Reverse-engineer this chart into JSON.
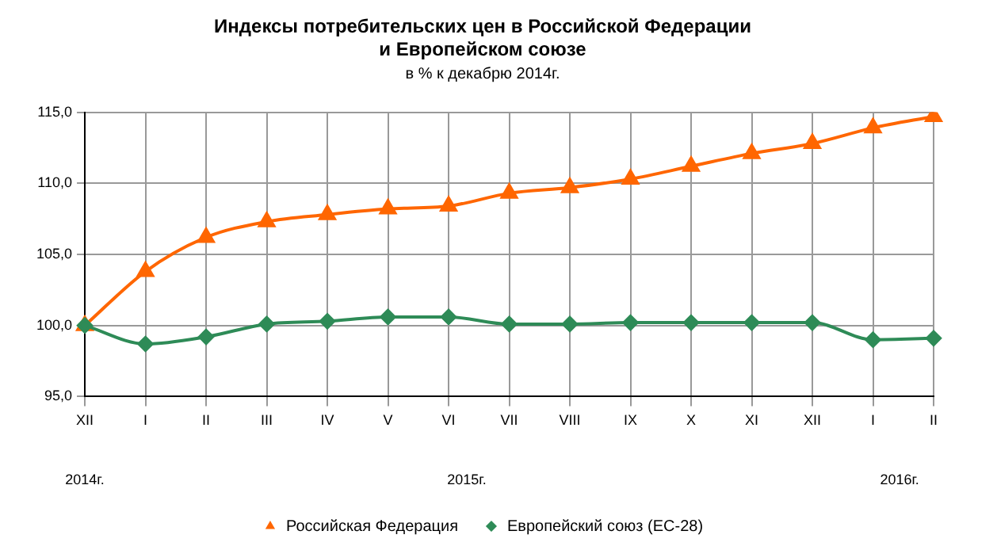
{
  "chart_data": {
    "type": "line",
    "title": "Индексы потребительских цен в Российской Федерации\nи Европейском союзе",
    "subtitle": "в % к декабрю 2014г.",
    "categories": [
      "XII",
      "I",
      "II",
      "III",
      "IV",
      "V",
      "VI",
      "VII",
      "VIII",
      "IX",
      "X",
      "XI",
      "XII",
      "I",
      "II"
    ],
    "series": [
      {
        "name": "Российская Федерация",
        "color": "#ff6600",
        "marker": "triangle",
        "values": [
          100,
          103.8,
          106.2,
          107.3,
          107.8,
          108.2,
          108.4,
          109.3,
          109.7,
          110.3,
          111.2,
          112.1,
          112.8,
          113.9,
          114.7
        ]
      },
      {
        "name": "Европейский союз (ЕС-28)",
        "color": "#2e8b57",
        "marker": "diamond",
        "values": [
          100,
          98.7,
          99.2,
          100.1,
          100.3,
          100.6,
          100.6,
          100.1,
          100.1,
          100.2,
          100.2,
          100.2,
          100.2,
          99.0,
          99.1
        ]
      }
    ],
    "ylim": [
      95,
      115
    ],
    "yticks": [
      {
        "value": 95,
        "label": "95,0"
      },
      {
        "value": 100,
        "label": "100,0"
      },
      {
        "value": 105,
        "label": "105,0"
      },
      {
        "value": 110,
        "label": "110,0"
      },
      {
        "value": 115,
        "label": "115,0"
      }
    ],
    "annotations": [
      "2014г.",
      "2015г.",
      "2016г."
    ],
    "grid": true,
    "legend": "bottom",
    "line_style": "solid"
  }
}
